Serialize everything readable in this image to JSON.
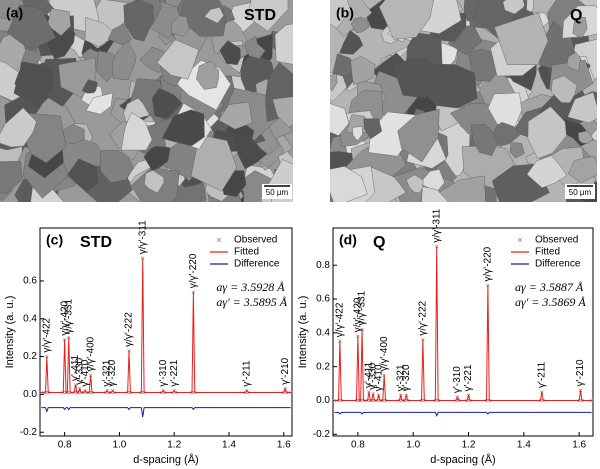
{
  "panels": [
    {
      "label": "(a)",
      "title": "STD",
      "scale_bar": "50 μm"
    },
    {
      "label": "(b)",
      "title": "Q",
      "scale_bar": "50 μm"
    }
  ],
  "chart_data": [
    {
      "type": "line",
      "panel": "(c)",
      "title": "STD",
      "xlabel": "d-spacing (Å)",
      "ylabel": "Intensity (a. u.)",
      "xlim": [
        0.71,
        1.63
      ],
      "ylim": [
        -0.22,
        0.88
      ],
      "xticks": [
        0.8,
        {
          "value": 1,
          "label": "1.0"
        },
        1.2,
        1.4,
        1.6
      ],
      "yticks": [
        -0.2,
        {
          "value": 0,
          "label": "0.0"
        },
        0.2,
        0.4,
        0.6
      ],
      "x": [
        0.715,
        0.73,
        0.735,
        0.74,
        0.795,
        0.8,
        0.805,
        0.81,
        0.815,
        0.82,
        0.835,
        0.84,
        0.845,
        0.85,
        0.855,
        0.86,
        0.87,
        0.875,
        0.88,
        0.89,
        0.895,
        0.9,
        0.95,
        0.955,
        0.96,
        0.97,
        0.975,
        0.98,
        1.03,
        1.035,
        1.04,
        1.08,
        1.085,
        1.09,
        1.155,
        1.16,
        1.165,
        1.195,
        1.2,
        1.205,
        1.265,
        1.27,
        1.275,
        1.46,
        1.465,
        1.47,
        1.6,
        1.605,
        1.61,
        1.625
      ],
      "series": [
        {
          "name": "Observed",
          "color": "#8c8c8c",
          "values": [
            0.01,
            0.01,
            0.2,
            0.01,
            0.01,
            0.29,
            0.01,
            0.01,
            0.3,
            0.01,
            0.01,
            0.05,
            0.01,
            0.01,
            0.03,
            0.01,
            0.01,
            0.02,
            0.01,
            0.01,
            0.1,
            0.01,
            0.01,
            0.02,
            0.01,
            0.01,
            0.02,
            0.01,
            0.01,
            0.23,
            0.01,
            0.01,
            0.72,
            0.01,
            0.01,
            0.02,
            0.01,
            0.01,
            0.02,
            0.01,
            0.01,
            0.54,
            0.01,
            0.01,
            0.02,
            0.01,
            0.01,
            0.03,
            0.01,
            0.01
          ]
        },
        {
          "name": "Fitted",
          "color": "#e8201c",
          "values": [
            0.01,
            0.01,
            0.2,
            0.01,
            0.01,
            0.29,
            0.01,
            0.01,
            0.3,
            0.01,
            0.01,
            0.05,
            0.01,
            0.01,
            0.03,
            0.01,
            0.01,
            0.02,
            0.01,
            0.01,
            0.1,
            0.01,
            0.01,
            0.02,
            0.01,
            0.01,
            0.02,
            0.01,
            0.01,
            0.23,
            0.01,
            0.01,
            0.72,
            0.01,
            0.01,
            0.02,
            0.01,
            0.01,
            0.02,
            0.01,
            0.01,
            0.54,
            0.01,
            0.01,
            0.02,
            0.01,
            0.01,
            0.03,
            0.01,
            0.01
          ]
        },
        {
          "name": "Difference",
          "color": "#1a1aa6",
          "values": [
            -0.07,
            -0.07,
            -0.09,
            -0.07,
            -0.07,
            -0.08,
            -0.07,
            -0.07,
            -0.08,
            -0.07,
            -0.07,
            -0.07,
            -0.07,
            -0.07,
            -0.07,
            -0.07,
            -0.07,
            -0.07,
            -0.07,
            -0.07,
            -0.07,
            -0.07,
            -0.07,
            -0.07,
            -0.07,
            -0.07,
            -0.07,
            -0.07,
            -0.07,
            -0.08,
            -0.07,
            -0.07,
            -0.12,
            -0.07,
            -0.07,
            -0.07,
            -0.07,
            -0.07,
            -0.07,
            -0.07,
            -0.07,
            -0.08,
            -0.07,
            -0.07,
            -0.07,
            -0.07,
            -0.07,
            -0.07,
            -0.07,
            -0.07
          ]
        }
      ],
      "peak_labels": [
        "γ/γ'-422",
        "γ/γ'-420",
        "γ/γ'-331",
        "γ'-411",
        "γ'-330",
        "γ'-410",
        "γ/γ'-400",
        "γ'-321",
        "γ'-320",
        "γ/γ'-222",
        "γ/γ'-311",
        "γ'-310",
        "γ'-221",
        "γ/γ'-220",
        "γ'-211",
        "γ'-210"
      ],
      "annotations": [
        "aγ = 3.5928 Å",
        "aγ' = 3.5895 Å"
      ]
    },
    {
      "type": "line",
      "panel": "(d)",
      "title": "Q",
      "xlabel": "d-spacing (Å)",
      "ylabel": "Intensity (a. u.)",
      "xlim": [
        0.71,
        1.65
      ],
      "ylim": [
        -0.21,
        1.02
      ],
      "xticks": [
        0.8,
        {
          "value": 1,
          "label": "1.0"
        },
        1.2,
        1.4,
        1.6
      ],
      "yticks": [
        -0.2,
        {
          "value": 0,
          "label": "0.0"
        },
        0.2,
        0.4,
        0.6,
        0.8
      ],
      "x": [
        0.715,
        0.73,
        0.735,
        0.74,
        0.795,
        0.8,
        0.805,
        0.81,
        0.815,
        0.82,
        0.835,
        0.84,
        0.845,
        0.85,
        0.855,
        0.86,
        0.87,
        0.875,
        0.88,
        0.89,
        0.895,
        0.9,
        0.95,
        0.955,
        0.96,
        0.97,
        0.975,
        0.98,
        1.03,
        1.035,
        1.04,
        1.08,
        1.085,
        1.09,
        1.155,
        1.16,
        1.165,
        1.195,
        1.2,
        1.205,
        1.265,
        1.27,
        1.275,
        1.46,
        1.465,
        1.47,
        1.6,
        1.605,
        1.61,
        1.645
      ],
      "series": [
        {
          "name": "Observed",
          "color": "#8c8c8c",
          "values": [
            0.0,
            0.0,
            0.35,
            0.0,
            0.0,
            0.38,
            0.0,
            0.0,
            0.42,
            0.0,
            0.0,
            0.05,
            0.0,
            0.0,
            0.04,
            0.0,
            0.0,
            0.03,
            0.0,
            0.0,
            0.15,
            0.0,
            0.0,
            0.03,
            0.0,
            0.0,
            0.03,
            0.0,
            0.0,
            0.36,
            0.0,
            0.0,
            0.91,
            0.0,
            0.0,
            0.02,
            0.0,
            0.0,
            0.03,
            0.0,
            0.0,
            0.68,
            0.0,
            0.0,
            0.05,
            0.0,
            0.0,
            0.06,
            0.0,
            0.0
          ]
        },
        {
          "name": "Fitted",
          "color": "#e8201c",
          "values": [
            0.0,
            0.0,
            0.35,
            0.0,
            0.0,
            0.38,
            0.0,
            0.0,
            0.42,
            0.0,
            0.0,
            0.05,
            0.0,
            0.0,
            0.04,
            0.0,
            0.0,
            0.03,
            0.0,
            0.0,
            0.15,
            0.0,
            0.0,
            0.03,
            0.0,
            0.0,
            0.03,
            0.0,
            0.0,
            0.36,
            0.0,
            0.0,
            0.91,
            0.0,
            0.0,
            0.02,
            0.0,
            0.0,
            0.03,
            0.0,
            0.0,
            0.68,
            0.0,
            0.0,
            0.05,
            0.0,
            0.0,
            0.06,
            0.0,
            0.0
          ]
        },
        {
          "name": "Difference",
          "color": "#1a1aa6",
          "values": [
            -0.07,
            -0.07,
            -0.08,
            -0.07,
            -0.07,
            -0.07,
            -0.07,
            -0.07,
            -0.08,
            -0.07,
            -0.07,
            -0.07,
            -0.07,
            -0.07,
            -0.07,
            -0.07,
            -0.07,
            -0.07,
            -0.07,
            -0.07,
            -0.07,
            -0.07,
            -0.07,
            -0.07,
            -0.07,
            -0.07,
            -0.07,
            -0.07,
            -0.07,
            -0.07,
            -0.07,
            -0.07,
            -0.09,
            -0.07,
            -0.07,
            -0.07,
            -0.07,
            -0.07,
            -0.07,
            -0.07,
            -0.07,
            -0.08,
            -0.07,
            -0.07,
            -0.07,
            -0.07,
            -0.07,
            -0.07,
            -0.07,
            -0.07
          ]
        }
      ],
      "peak_labels": [
        "γ/γ'-422",
        "γ/γ'-420",
        "γ/γ'-331",
        "γ'-411",
        "γ'-330",
        "γ'-410",
        "γ/γ'-400",
        "γ'-321",
        "γ'-320",
        "γ/γ'-222",
        "γ/γ'-311",
        "γ'-310",
        "γ'-221",
        "γ/γ'-220",
        "γ'-211",
        "γ'-210"
      ],
      "annotations": [
        "aγ = 3.5887 Å",
        "aγ' = 3.5869 Å"
      ]
    }
  ]
}
